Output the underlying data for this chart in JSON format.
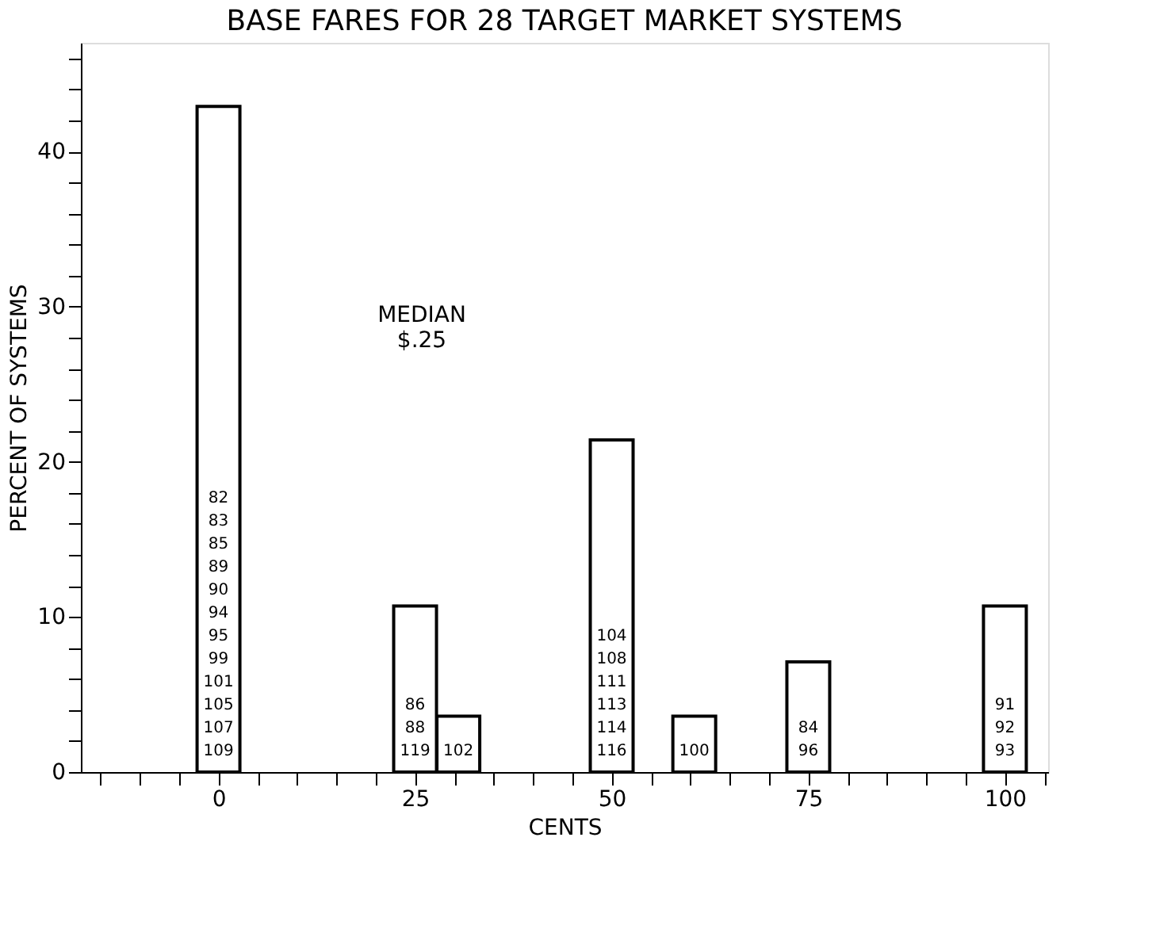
{
  "chart_data": {
    "type": "bar",
    "title": "BASE FARES FOR 28 TARGET MARKET SYSTEMS",
    "xlabel": "CENTS",
    "ylabel": "PERCENT OF SYSTEMS",
    "x": [
      0,
      25,
      30.5,
      50,
      60.5,
      75,
      100
    ],
    "values": [
      42.9,
      10.7,
      3.6,
      21.4,
      3.6,
      7.1,
      10.7
    ],
    "color": "#ffffff",
    "xlim": [
      -17.5,
      105.5
    ],
    "xticks": [
      {
        "value": -15,
        "label": null
      },
      {
        "value": -10,
        "label": null
      },
      {
        "value": -5,
        "label": null
      },
      0,
      {
        "value": 5,
        "label": null
      },
      {
        "value": 10,
        "label": null
      },
      {
        "value": 15,
        "label": null
      },
      {
        "value": 20,
        "label": null
      },
      25,
      {
        "value": 30,
        "label": null
      },
      {
        "value": 35,
        "label": null
      },
      {
        "value": 40,
        "label": null
      },
      {
        "value": 45,
        "label": null
      },
      50,
      {
        "value": 55,
        "label": null
      },
      {
        "value": 60,
        "label": null
      },
      {
        "value": 65,
        "label": null
      },
      {
        "value": 70,
        "label": null
      },
      75,
      {
        "value": 80,
        "label": null
      },
      {
        "value": 85,
        "label": null
      },
      {
        "value": 90,
        "label": null
      },
      {
        "value": 95,
        "label": null
      },
      100,
      {
        "value": 105,
        "label": null
      }
    ],
    "ylim": [
      0,
      47
    ],
    "yticks": [
      0,
      {
        "value": 2,
        "label": null
      },
      {
        "value": 4,
        "label": null
      },
      {
        "value": 6,
        "label": null
      },
      {
        "value": 8,
        "label": null
      },
      10,
      {
        "value": 12,
        "label": null
      },
      {
        "value": 14,
        "label": null
      },
      {
        "value": 16,
        "label": null
      },
      {
        "value": 18,
        "label": null
      },
      20,
      {
        "value": 22,
        "label": null
      },
      {
        "value": 24,
        "label": null
      },
      {
        "value": 26,
        "label": null
      },
      {
        "value": 28,
        "label": null
      },
      30,
      {
        "value": 32,
        "label": null
      },
      {
        "value": 34,
        "label": null
      },
      {
        "value": 36,
        "label": null
      },
      {
        "value": 38,
        "label": null
      },
      40,
      {
        "value": 42,
        "label": null
      },
      {
        "value": 44,
        "label": null
      },
      {
        "value": 46,
        "label": null
      }
    ],
    "grid": false,
    "annotations": [
      "MEDIAN\n$.25",
      "82\n83\n85\n89\n90\n94\n95\n99\n101\n105\n107\n109",
      "86\n88\n119",
      "102",
      "104\n108\n111\n113\n114\n116",
      "100",
      "84\n96",
      "91\n92\n93"
    ]
  }
}
